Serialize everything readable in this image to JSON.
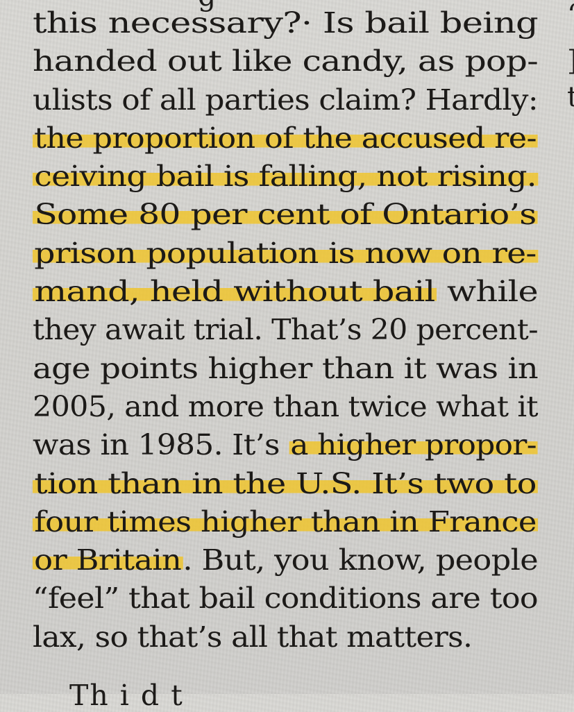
{
  "article": {
    "highlight_color": "#f0c428",
    "lines": [
      {
        "segments": [
          {
            "text": "this  necessary?·  Is  bail  being",
            "highlight": false
          }
        ]
      },
      {
        "segments": [
          {
            "text": "handed out like candy, as pop-",
            "highlight": false
          }
        ]
      },
      {
        "segments": [
          {
            "text": "ulists of all parties claim? Hardly:",
            "highlight": false
          }
        ]
      },
      {
        "segments": [
          {
            "text": "the proportion of the accused re-",
            "highlight": true
          }
        ]
      },
      {
        "segments": [
          {
            "text": "ceiving bail is falling, not rising.",
            "highlight": true
          }
        ]
      },
      {
        "segments": [
          {
            "text": "Some 80 per cent of Ontario’s",
            "highlight": true
          }
        ]
      },
      {
        "segments": [
          {
            "text": "prison population is now on re-",
            "highlight": true
          }
        ]
      },
      {
        "segments": [
          {
            "text": "mand, held without bail",
            "highlight": true
          },
          {
            "text": " while",
            "highlight": false
          }
        ]
      },
      {
        "segments": [
          {
            "text": "they await trial. That’s 20 percent-",
            "highlight": false
          }
        ]
      },
      {
        "segments": [
          {
            "text": "age points higher than it was in",
            "highlight": false
          }
        ]
      },
      {
        "segments": [
          {
            "text": "2005, and more than twice what it",
            "highlight": false
          }
        ]
      },
      {
        "segments": [
          {
            "text": "was in 1985. It’s ",
            "highlight": false
          },
          {
            "text": "a higher propor-",
            "highlight": true
          }
        ]
      },
      {
        "segments": [
          {
            "text": "tion than in the U.S. It’s two to",
            "highlight": true
          }
        ]
      },
      {
        "segments": [
          {
            "text": "four times higher than in France",
            "highlight": true
          }
        ]
      },
      {
        "segments": [
          {
            "text": "or Britain",
            "highlight": true
          },
          {
            "text": ". But, you know, people",
            "highlight": false
          }
        ]
      },
      {
        "segments": [
          {
            "text": "“feel” that bail conditions are too",
            "highlight": false
          }
        ]
      },
      {
        "segments": [
          {
            "text": "lax, so that’s all that matters.",
            "highlight": false
          }
        ]
      }
    ],
    "partial_bottom_line": "Th   i         d     t",
    "partial_top_fragment": "g"
  }
}
